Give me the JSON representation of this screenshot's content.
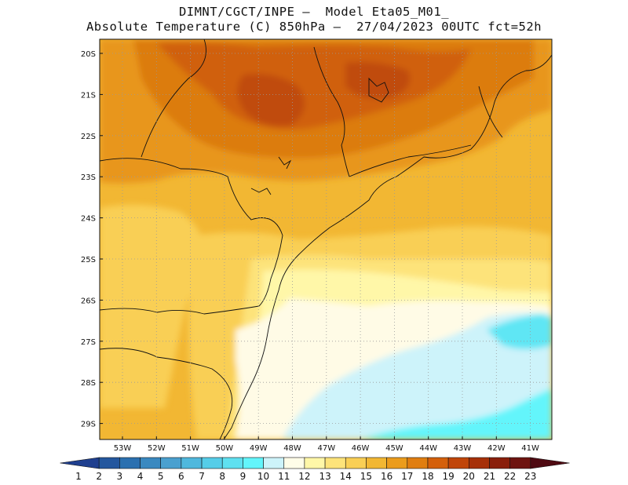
{
  "title": {
    "line1": "DIMNT/CGCT/INPE –  Model Eta05_M01_",
    "line2": "Absolute Temperature (C) 850hPa –  27/04/2023 00UTC fct=52h"
  },
  "lat_labels": [
    "20S",
    "21S",
    "22S",
    "23S",
    "24S",
    "25S",
    "26S",
    "27S",
    "28S",
    "29S"
  ],
  "lon_labels": [
    "53W",
    "52W",
    "51W",
    "50W",
    "49W",
    "48W",
    "47W",
    "46W",
    "45W",
    "44W",
    "43W",
    "42W",
    "41W"
  ],
  "colorbar": {
    "labels": [
      "1",
      "2",
      "3",
      "4",
      "5",
      "6",
      "7",
      "8",
      "9",
      "10",
      "11",
      "12",
      "13",
      "14",
      "15",
      "16",
      "17",
      "18",
      "19",
      "20",
      "21",
      "22",
      "23"
    ],
    "colors": [
      "#1f3f8f",
      "#24579e",
      "#2b70b0",
      "#3a89c0",
      "#4aa0cf",
      "#4fb8dd",
      "#55cde8",
      "#5fe0f0",
      "#63f5fb",
      "#cdf3fa",
      "#fffde8",
      "#fff7a8",
      "#fde37a",
      "#f9cf55",
      "#f2b733",
      "#eb9c1c",
      "#e07e10",
      "#d4600b",
      "#c04509",
      "#a63008",
      "#8a1f0b",
      "#6e1410",
      "#4f0a12"
    ]
  },
  "chart_data": {
    "type": "heatmap",
    "variable": "Absolute Temperature (C) 850hPa",
    "lon_range": [
      -53.8,
      -40.6
    ],
    "lat_range": [
      -29.4,
      -19.9
    ],
    "zones": [
      {
        "region": "north interior",
        "value_range": [
          18,
          19
        ]
      },
      {
        "region": "central",
        "value_range": [
          15,
          17
        ]
      },
      {
        "region": "south-west",
        "value_range": [
          13,
          14
        ]
      },
      {
        "region": "coast 25S-28S",
        "value_range": [
          11,
          12
        ]
      },
      {
        "region": "ocean south-east",
        "value_range": [
          9,
          10
        ]
      }
    ]
  }
}
